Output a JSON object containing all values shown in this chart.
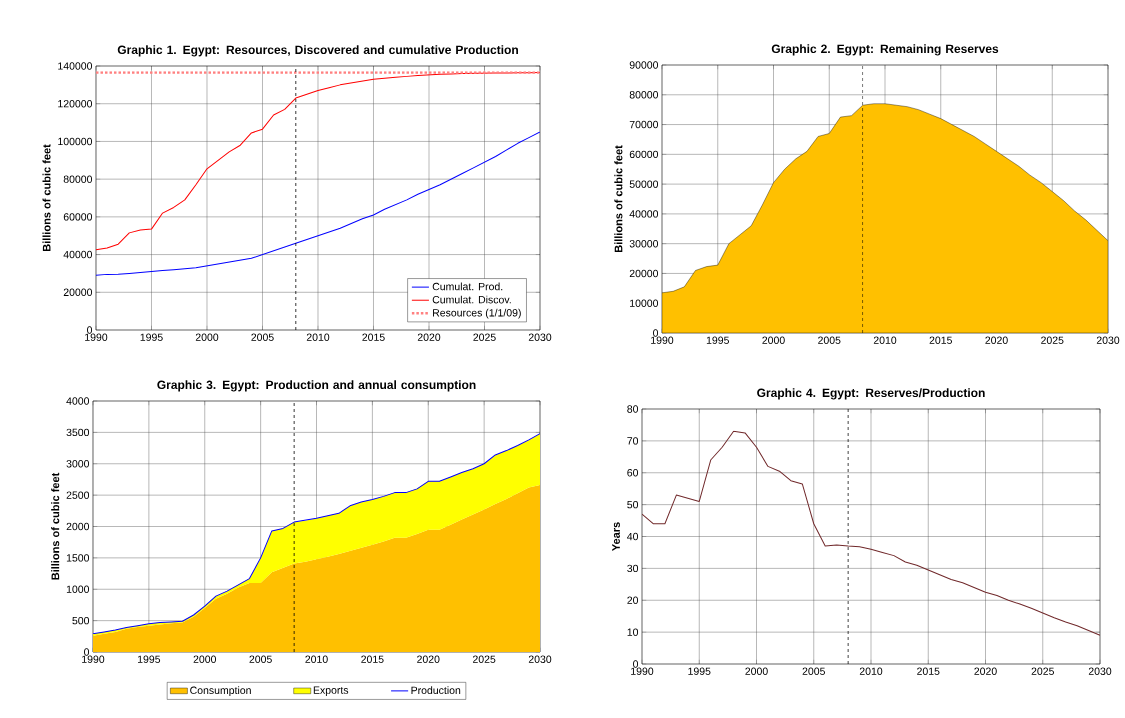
{
  "chart_data": [
    {
      "type": "line",
      "title": "Graphic 1. Egypt: Resources, Discovered and cumulative Production",
      "ylabel": "Billions of cubic feet",
      "x": [
        1990,
        1991,
        1992,
        1993,
        1994,
        1995,
        1996,
        1997,
        1998,
        1999,
        2000,
        2001,
        2002,
        2003,
        2004,
        2005,
        2006,
        2007,
        2008,
        2009,
        2010,
        2011,
        2012,
        2013,
        2014,
        2015,
        2016,
        2017,
        2018,
        2019,
        2020,
        2021,
        2022,
        2023,
        2024,
        2025,
        2026,
        2027,
        2028,
        2029,
        2030
      ],
      "series": [
        {
          "name": "Cumulat.  Prod.",
          "color": "#0000ff",
          "values": [
            29000,
            29500,
            29600,
            30000,
            30500,
            31000,
            31500,
            32000,
            32500,
            33000,
            34000,
            35000,
            36000,
            37000,
            38000,
            40000,
            42000,
            44000,
            46000,
            48000,
            50000,
            52000,
            54000,
            56500,
            59000,
            61000,
            64000,
            66500,
            69000,
            72000,
            74500,
            77000,
            80000,
            83000,
            86000,
            89000,
            92000,
            95500,
            99000,
            102000,
            105000
          ]
        },
        {
          "name": "Cumulat.  Discov.",
          "color": "#ff0000",
          "values": [
            42500,
            43500,
            45500,
            51500,
            53000,
            53500,
            62000,
            65000,
            69000,
            77000,
            85500,
            90000,
            94500,
            98000,
            104500,
            106500,
            114000,
            117000,
            123000,
            125000,
            127000,
            128500,
            130000,
            131000,
            132000,
            133000,
            133500,
            134000,
            134500,
            135000,
            135300,
            135600,
            135800,
            136000,
            136100,
            136200,
            136300,
            136300,
            136400,
            136400,
            136500
          ]
        },
        {
          "name": "Resources (1/1/09)",
          "color": "#ff8080",
          "line_style": "dotted",
          "x": [
            1990,
            2030
          ],
          "values": [
            136500,
            136500
          ]
        }
      ],
      "xlim": [
        1990,
        2030
      ],
      "ylim": [
        0,
        140000
      ],
      "xticks": [
        1990,
        1995,
        2000,
        2005,
        2010,
        2015,
        2020,
        2025,
        2030
      ],
      "yticks": [
        0,
        20000,
        40000,
        60000,
        80000,
        100000,
        120000,
        140000
      ],
      "grid": true,
      "legend": "bottom right",
      "ref_lines": [
        {
          "axis": "x",
          "value": 2008,
          "color": "#000000",
          "line_style": "dashed"
        }
      ]
    },
    {
      "type": "area",
      "title": "Graphic 2. Egypt: Remaining Reserves",
      "ylabel": "Billions of cubic feet",
      "x": [
        1990,
        1991,
        1992,
        1993,
        1994,
        1995,
        1996,
        1997,
        1998,
        1999,
        2000,
        2001,
        2002,
        2003,
        2004,
        2005,
        2006,
        2007,
        2008,
        2009,
        2010,
        2011,
        2012,
        2013,
        2014,
        2015,
        2016,
        2017,
        2018,
        2019,
        2020,
        2021,
        2022,
        2023,
        2024,
        2025,
        2026,
        2027,
        2028,
        2029,
        2030
      ],
      "series": [
        {
          "color": "#ffc000",
          "values": [
            13500,
            14000,
            15500,
            21000,
            22300,
            22800,
            30000,
            33000,
            36000,
            43000,
            50500,
            55000,
            58500,
            61000,
            66000,
            67000,
            72500,
            73000,
            76500,
            77000,
            77000,
            76500,
            76000,
            75000,
            73500,
            72000,
            70000,
            68000,
            66000,
            63500,
            61000,
            58500,
            56000,
            53000,
            50500,
            47500,
            44500,
            41000,
            38000,
            34500,
            31000
          ]
        }
      ],
      "xlim": [
        1990,
        2030
      ],
      "ylim": [
        0,
        90000
      ],
      "xticks": [
        1990,
        1995,
        2000,
        2005,
        2010,
        2015,
        2020,
        2025,
        2030
      ],
      "yticks": [
        0,
        10000,
        20000,
        30000,
        40000,
        50000,
        60000,
        70000,
        80000,
        90000
      ],
      "grid": true,
      "ref_lines": [
        {
          "axis": "x",
          "value": 2008,
          "color": "#000000",
          "line_style": "dashed"
        }
      ]
    },
    {
      "type": "area",
      "title": "Graphic 3. Egypt: Production and annual  consumption",
      "ylabel": "Billions of cubic feet",
      "stacked": true,
      "x": [
        1990,
        1991,
        1992,
        1993,
        1994,
        1995,
        1996,
        1997,
        1998,
        1999,
        2000,
        2001,
        2002,
        2003,
        2004,
        2005,
        2006,
        2007,
        2008,
        2009,
        2010,
        2011,
        2012,
        2013,
        2014,
        2015,
        2016,
        2017,
        2018,
        2019,
        2020,
        2021,
        2022,
        2023,
        2024,
        2025,
        2026,
        2027,
        2028,
        2029,
        2030
      ],
      "series": [
        {
          "name": "Consumption",
          "color": "#ffc000",
          "values": [
            260,
            290,
            320,
            370,
            400,
            420,
            440,
            460,
            470,
            560,
            700,
            850,
            930,
            1030,
            1100,
            1100,
            1270,
            1340,
            1410,
            1440,
            1480,
            1520,
            1560,
            1610,
            1660,
            1710,
            1760,
            1820,
            1820,
            1880,
            1950,
            1950,
            2030,
            2110,
            2190,
            2270,
            2360,
            2440,
            2530,
            2620,
            2660
          ]
        },
        {
          "name": "Exports",
          "color": "#ffff00",
          "values": [
            30,
            30,
            30,
            20,
            20,
            30,
            30,
            20,
            20,
            30,
            30,
            40,
            40,
            40,
            70,
            400,
            660,
            630,
            660,
            650,
            650,
            650,
            650,
            720,
            730,
            720,
            720,
            720,
            720,
            720,
            770,
            770,
            760,
            750,
            730,
            730,
            780,
            770,
            760,
            760,
            820
          ]
        },
        {
          "name": "Production",
          "type": "line",
          "color": "#0000ff",
          "values": [
            290,
            320,
            350,
            390,
            420,
            450,
            470,
            480,
            490,
            590,
            730,
            890,
            970,
            1070,
            1170,
            1500,
            1930,
            1970,
            2070,
            2100,
            2130,
            2170,
            2210,
            2330,
            2390,
            2430,
            2480,
            2540,
            2540,
            2600,
            2720,
            2720,
            2790,
            2860,
            2920,
            3000,
            3140,
            3210,
            3290,
            3380,
            3480
          ]
        }
      ],
      "xlim": [
        1990,
        2030
      ],
      "ylim": [
        0,
        4000
      ],
      "xticks": [
        1990,
        1995,
        2000,
        2005,
        2010,
        2015,
        2020,
        2025,
        2030
      ],
      "yticks": [
        0,
        500,
        1000,
        1500,
        2000,
        2500,
        3000,
        3500,
        4000
      ],
      "grid": true,
      "legend": "bottom",
      "ref_lines": [
        {
          "axis": "x",
          "value": 2008,
          "color": "#000000",
          "line_style": "dashed"
        }
      ]
    },
    {
      "type": "line",
      "title": "Graphic 4. Egypt: Reserves/Production",
      "ylabel": "Years",
      "x": [
        1990,
        1991,
        1992,
        1993,
        1994,
        1995,
        1996,
        1997,
        1998,
        1999,
        2000,
        2001,
        2002,
        2003,
        2004,
        2005,
        2006,
        2007,
        2008,
        2009,
        2010,
        2011,
        2012,
        2013,
        2014,
        2015,
        2016,
        2017,
        2018,
        2019,
        2020,
        2021,
        2022,
        2023,
        2024,
        2025,
        2026,
        2027,
        2028,
        2029,
        2030
      ],
      "series": [
        {
          "color": "#70282a",
          "values": [
            47,
            44,
            44,
            53,
            52,
            51,
            64,
            68,
            73,
            72.5,
            68,
            62,
            60.5,
            57.5,
            56.5,
            44,
            37,
            37.3,
            37,
            36.8,
            36,
            35,
            34,
            32,
            31,
            29.5,
            28,
            26.5,
            25.5,
            24,
            22.5,
            21.5,
            20,
            18.8,
            17.5,
            16,
            14.5,
            13.2,
            12,
            10.5,
            9
          ]
        }
      ],
      "xlim": [
        1990,
        2030
      ],
      "ylim": [
        0,
        80
      ],
      "xticks": [
        1990,
        1995,
        2000,
        2005,
        2010,
        2015,
        2020,
        2025,
        2030
      ],
      "yticks": [
        0,
        10,
        20,
        30,
        40,
        50,
        60,
        70,
        80
      ],
      "grid": true,
      "ref_lines": [
        {
          "axis": "x",
          "value": 2008,
          "color": "#000000",
          "line_style": "dashed"
        }
      ]
    }
  ]
}
